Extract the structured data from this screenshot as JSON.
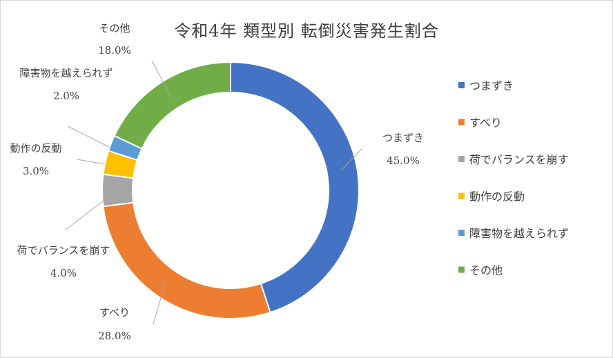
{
  "chart_data": {
    "type": "pie",
    "title": "令和4年 類型別 転倒災害発生割合",
    "categories": [
      "つまずき",
      "すべり",
      "荷でバランスを崩す",
      "動作の反動",
      "障害物を越えられず",
      "その他"
    ],
    "values": [
      45.0,
      28.0,
      4.0,
      3.0,
      2.0,
      18.0
    ],
    "value_labels": [
      "45.0%",
      "28.0%",
      "4.0%",
      "3.0%",
      "2.0%",
      "18.0%"
    ],
    "colors": [
      "#4472C4",
      "#ED7D31",
      "#A5A5A5",
      "#FFC000",
      "#5B9BD5",
      "#70AD47"
    ],
    "legend_position": "right"
  }
}
